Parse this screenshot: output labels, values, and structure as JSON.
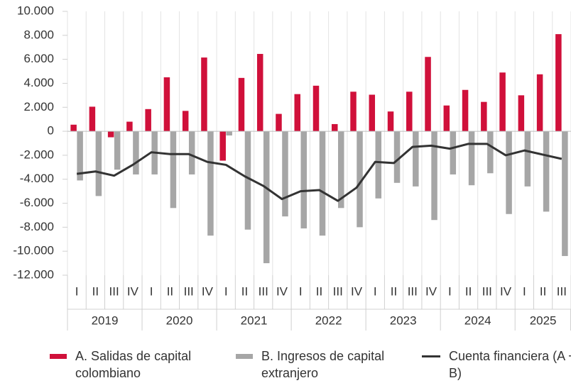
{
  "chart_data": {
    "type": "bar",
    "categories": [
      "I",
      "II",
      "III",
      "IV",
      "I",
      "II",
      "III",
      "IV",
      "I",
      "II",
      "III",
      "IV",
      "I",
      "II",
      "III",
      "IV",
      "I",
      "II",
      "III",
      "IV",
      "I",
      "II",
      "III",
      "IV",
      "I",
      "II",
      "III"
    ],
    "category_groups": [
      "2019",
      "2020",
      "2021",
      "2022",
      "2023",
      "2024",
      "2025"
    ],
    "series": [
      {
        "name": "A. Salidas de capital colombiano",
        "type": "bar",
        "color": "#d0103a",
        "values": [
          550,
          2050,
          -500,
          800,
          1850,
          4500,
          1700,
          6150,
          -2450,
          4450,
          6450,
          1450,
          3100,
          3800,
          600,
          3300,
          3050,
          1650,
          3300,
          6200,
          2150,
          3450,
          2450,
          4900,
          3000,
          4750,
          8100
        ]
      },
      {
        "name": "B. Ingresos de capital extranjero",
        "type": "bar",
        "color": "#a6a6a6",
        "values": [
          -4100,
          -5400,
          -3200,
          -3600,
          -3600,
          -6400,
          -3600,
          -8700,
          -350,
          -8200,
          -11000,
          -7100,
          -8100,
          -8700,
          -6400,
          -8000,
          -5600,
          -4300,
          -4600,
          -7400,
          -3600,
          -4500,
          -3500,
          -6900,
          -4600,
          -6700,
          -10400
        ]
      },
      {
        "name": "Cuenta financiera (A + B)",
        "type": "line",
        "color": "#333333",
        "values": [
          -3550,
          -3350,
          -3700,
          -2800,
          -1750,
          -1900,
          -1900,
          -2550,
          -2800,
          -3750,
          -4550,
          -5650,
          -5000,
          -4900,
          -5800,
          -4700,
          -2550,
          -2650,
          -1300,
          -1200,
          -1450,
          -1050,
          -1050,
          -2000,
          -1600,
          -1950,
          -2300
        ]
      }
    ],
    "ylim": [
      -12000,
      10000
    ],
    "yticks": [
      {
        "value": -12000,
        "label": "-12.000"
      },
      {
        "value": -10000,
        "label": "-10.000"
      },
      {
        "value": -8000,
        "label": "-8.000"
      },
      {
        "value": -6000,
        "label": "-6.000"
      },
      {
        "value": -4000,
        "label": "-4.000"
      },
      {
        "value": -2000,
        "label": "-2.000"
      },
      0,
      {
        "value": 2000,
        "label": "2.000"
      },
      {
        "value": 4000,
        "label": "4.000"
      },
      {
        "value": 6000,
        "label": "6.000"
      },
      {
        "value": 8000,
        "label": "8.000"
      },
      {
        "value": 10000,
        "label": "10.000"
      }
    ],
    "grid": "x",
    "legend": "bottom"
  }
}
